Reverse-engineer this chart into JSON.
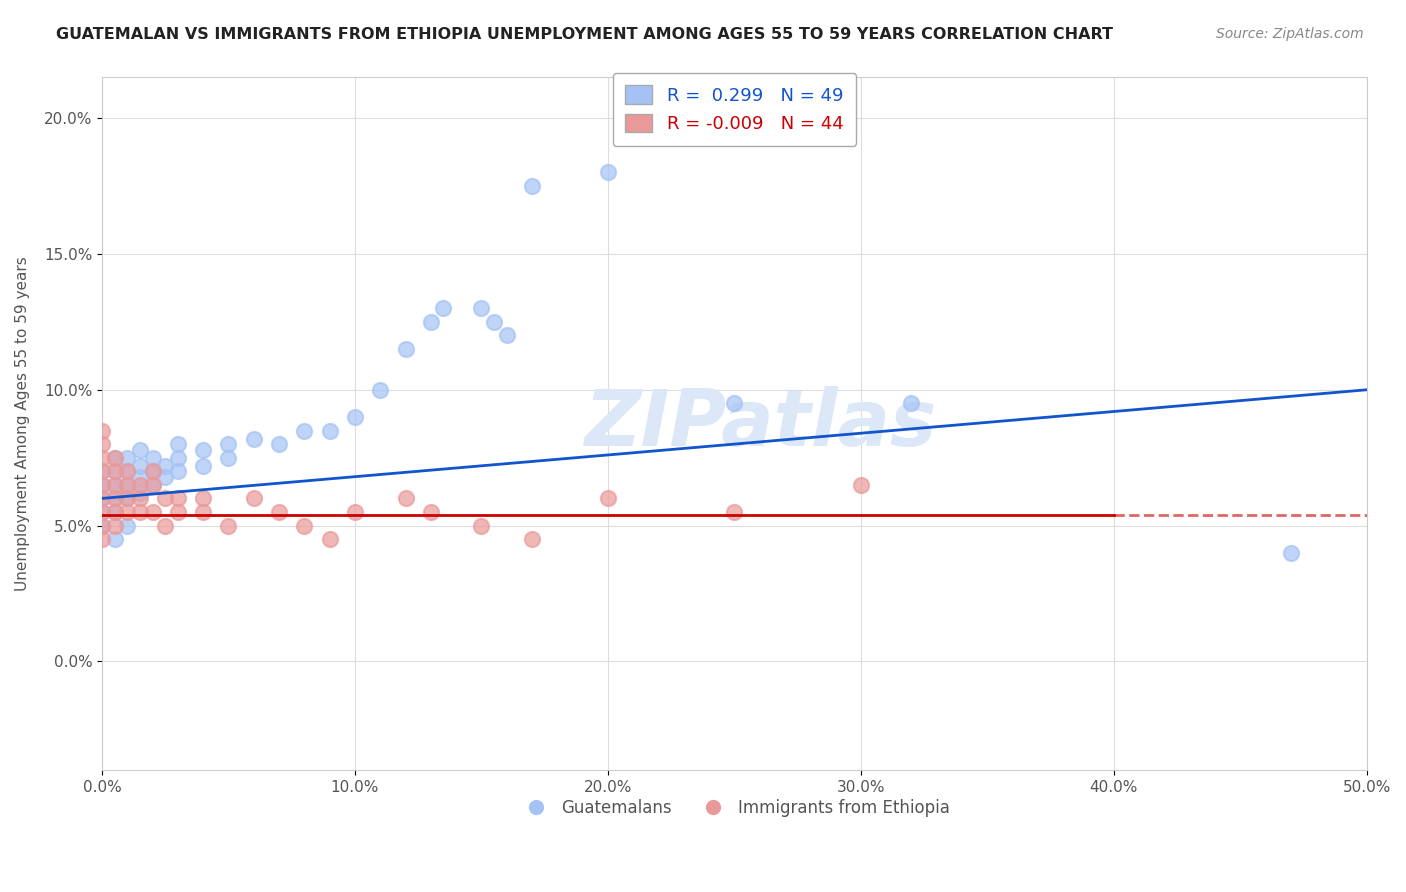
{
  "title": "GUATEMALAN VS IMMIGRANTS FROM ETHIOPIA UNEMPLOYMENT AMONG AGES 55 TO 59 YEARS CORRELATION CHART",
  "source": "Source: ZipAtlas.com",
  "ylabel": "Unemployment Among Ages 55 to 59 years",
  "xlim": [
    0.0,
    0.5
  ],
  "ylim": [
    -0.04,
    0.215
  ],
  "xticks": [
    0.0,
    0.1,
    0.2,
    0.3,
    0.4,
    0.5
  ],
  "xticklabels": [
    "0.0%",
    "10.0%",
    "20.0%",
    "30.0%",
    "40.0%",
    "50.0%"
  ],
  "yticks": [
    0.0,
    0.05,
    0.1,
    0.15,
    0.2
  ],
  "yticklabels": [
    "0.0%",
    "5.0%",
    "10.0%",
    "15.0%",
    "20.0%"
  ],
  "legend_labels": [
    "Guatemalans",
    "Immigrants from Ethiopia"
  ],
  "R_blue": 0.299,
  "N_blue": 49,
  "R_pink": -0.009,
  "N_pink": 44,
  "blue_color": "#a4c2f4",
  "pink_color": "#ea9999",
  "blue_line_color": "#1155cc",
  "pink_line_color": "#cc0000",
  "watermark": "ZIPatlas",
  "guatemalan_x": [
    0.0,
    0.0,
    0.0,
    0.0,
    0.0,
    0.005,
    0.005,
    0.005,
    0.005,
    0.005,
    0.005,
    0.01,
    0.01,
    0.01,
    0.01,
    0.01,
    0.015,
    0.015,
    0.015,
    0.015,
    0.02,
    0.02,
    0.02,
    0.025,
    0.025,
    0.03,
    0.03,
    0.03,
    0.04,
    0.04,
    0.05,
    0.05,
    0.06,
    0.08,
    0.1,
    0.13,
    0.135,
    0.15,
    0.155,
    0.17,
    0.2,
    0.25,
    0.32,
    0.16,
    0.09,
    0.11,
    0.12,
    0.07,
    0.47
  ],
  "guatemalan_y": [
    0.055,
    0.065,
    0.07,
    0.06,
    0.05,
    0.06,
    0.065,
    0.07,
    0.075,
    0.055,
    0.045,
    0.065,
    0.07,
    0.075,
    0.06,
    0.05,
    0.068,
    0.072,
    0.078,
    0.062,
    0.07,
    0.075,
    0.065,
    0.072,
    0.068,
    0.075,
    0.08,
    0.07,
    0.078,
    0.072,
    0.08,
    0.075,
    0.082,
    0.085,
    0.09,
    0.125,
    0.13,
    0.13,
    0.125,
    0.175,
    0.18,
    0.095,
    0.095,
    0.12,
    0.085,
    0.1,
    0.115,
    0.08,
    0.04
  ],
  "ethiopia_x": [
    0.0,
    0.0,
    0.0,
    0.0,
    0.0,
    0.0,
    0.0,
    0.0,
    0.0,
    0.005,
    0.005,
    0.005,
    0.005,
    0.005,
    0.005,
    0.01,
    0.01,
    0.01,
    0.01,
    0.015,
    0.015,
    0.015,
    0.02,
    0.02,
    0.02,
    0.025,
    0.025,
    0.03,
    0.03,
    0.04,
    0.04,
    0.05,
    0.06,
    0.07,
    0.08,
    0.09,
    0.1,
    0.12,
    0.13,
    0.15,
    0.17,
    0.2,
    0.25,
    0.3
  ],
  "ethiopia_y": [
    0.065,
    0.07,
    0.075,
    0.08,
    0.06,
    0.055,
    0.05,
    0.045,
    0.085,
    0.06,
    0.065,
    0.07,
    0.075,
    0.055,
    0.05,
    0.06,
    0.065,
    0.07,
    0.055,
    0.06,
    0.055,
    0.065,
    0.065,
    0.07,
    0.055,
    0.06,
    0.05,
    0.055,
    0.06,
    0.055,
    0.06,
    0.05,
    0.06,
    0.055,
    0.05,
    0.045,
    0.055,
    0.06,
    0.055,
    0.05,
    0.045,
    0.06,
    0.055,
    0.065
  ]
}
